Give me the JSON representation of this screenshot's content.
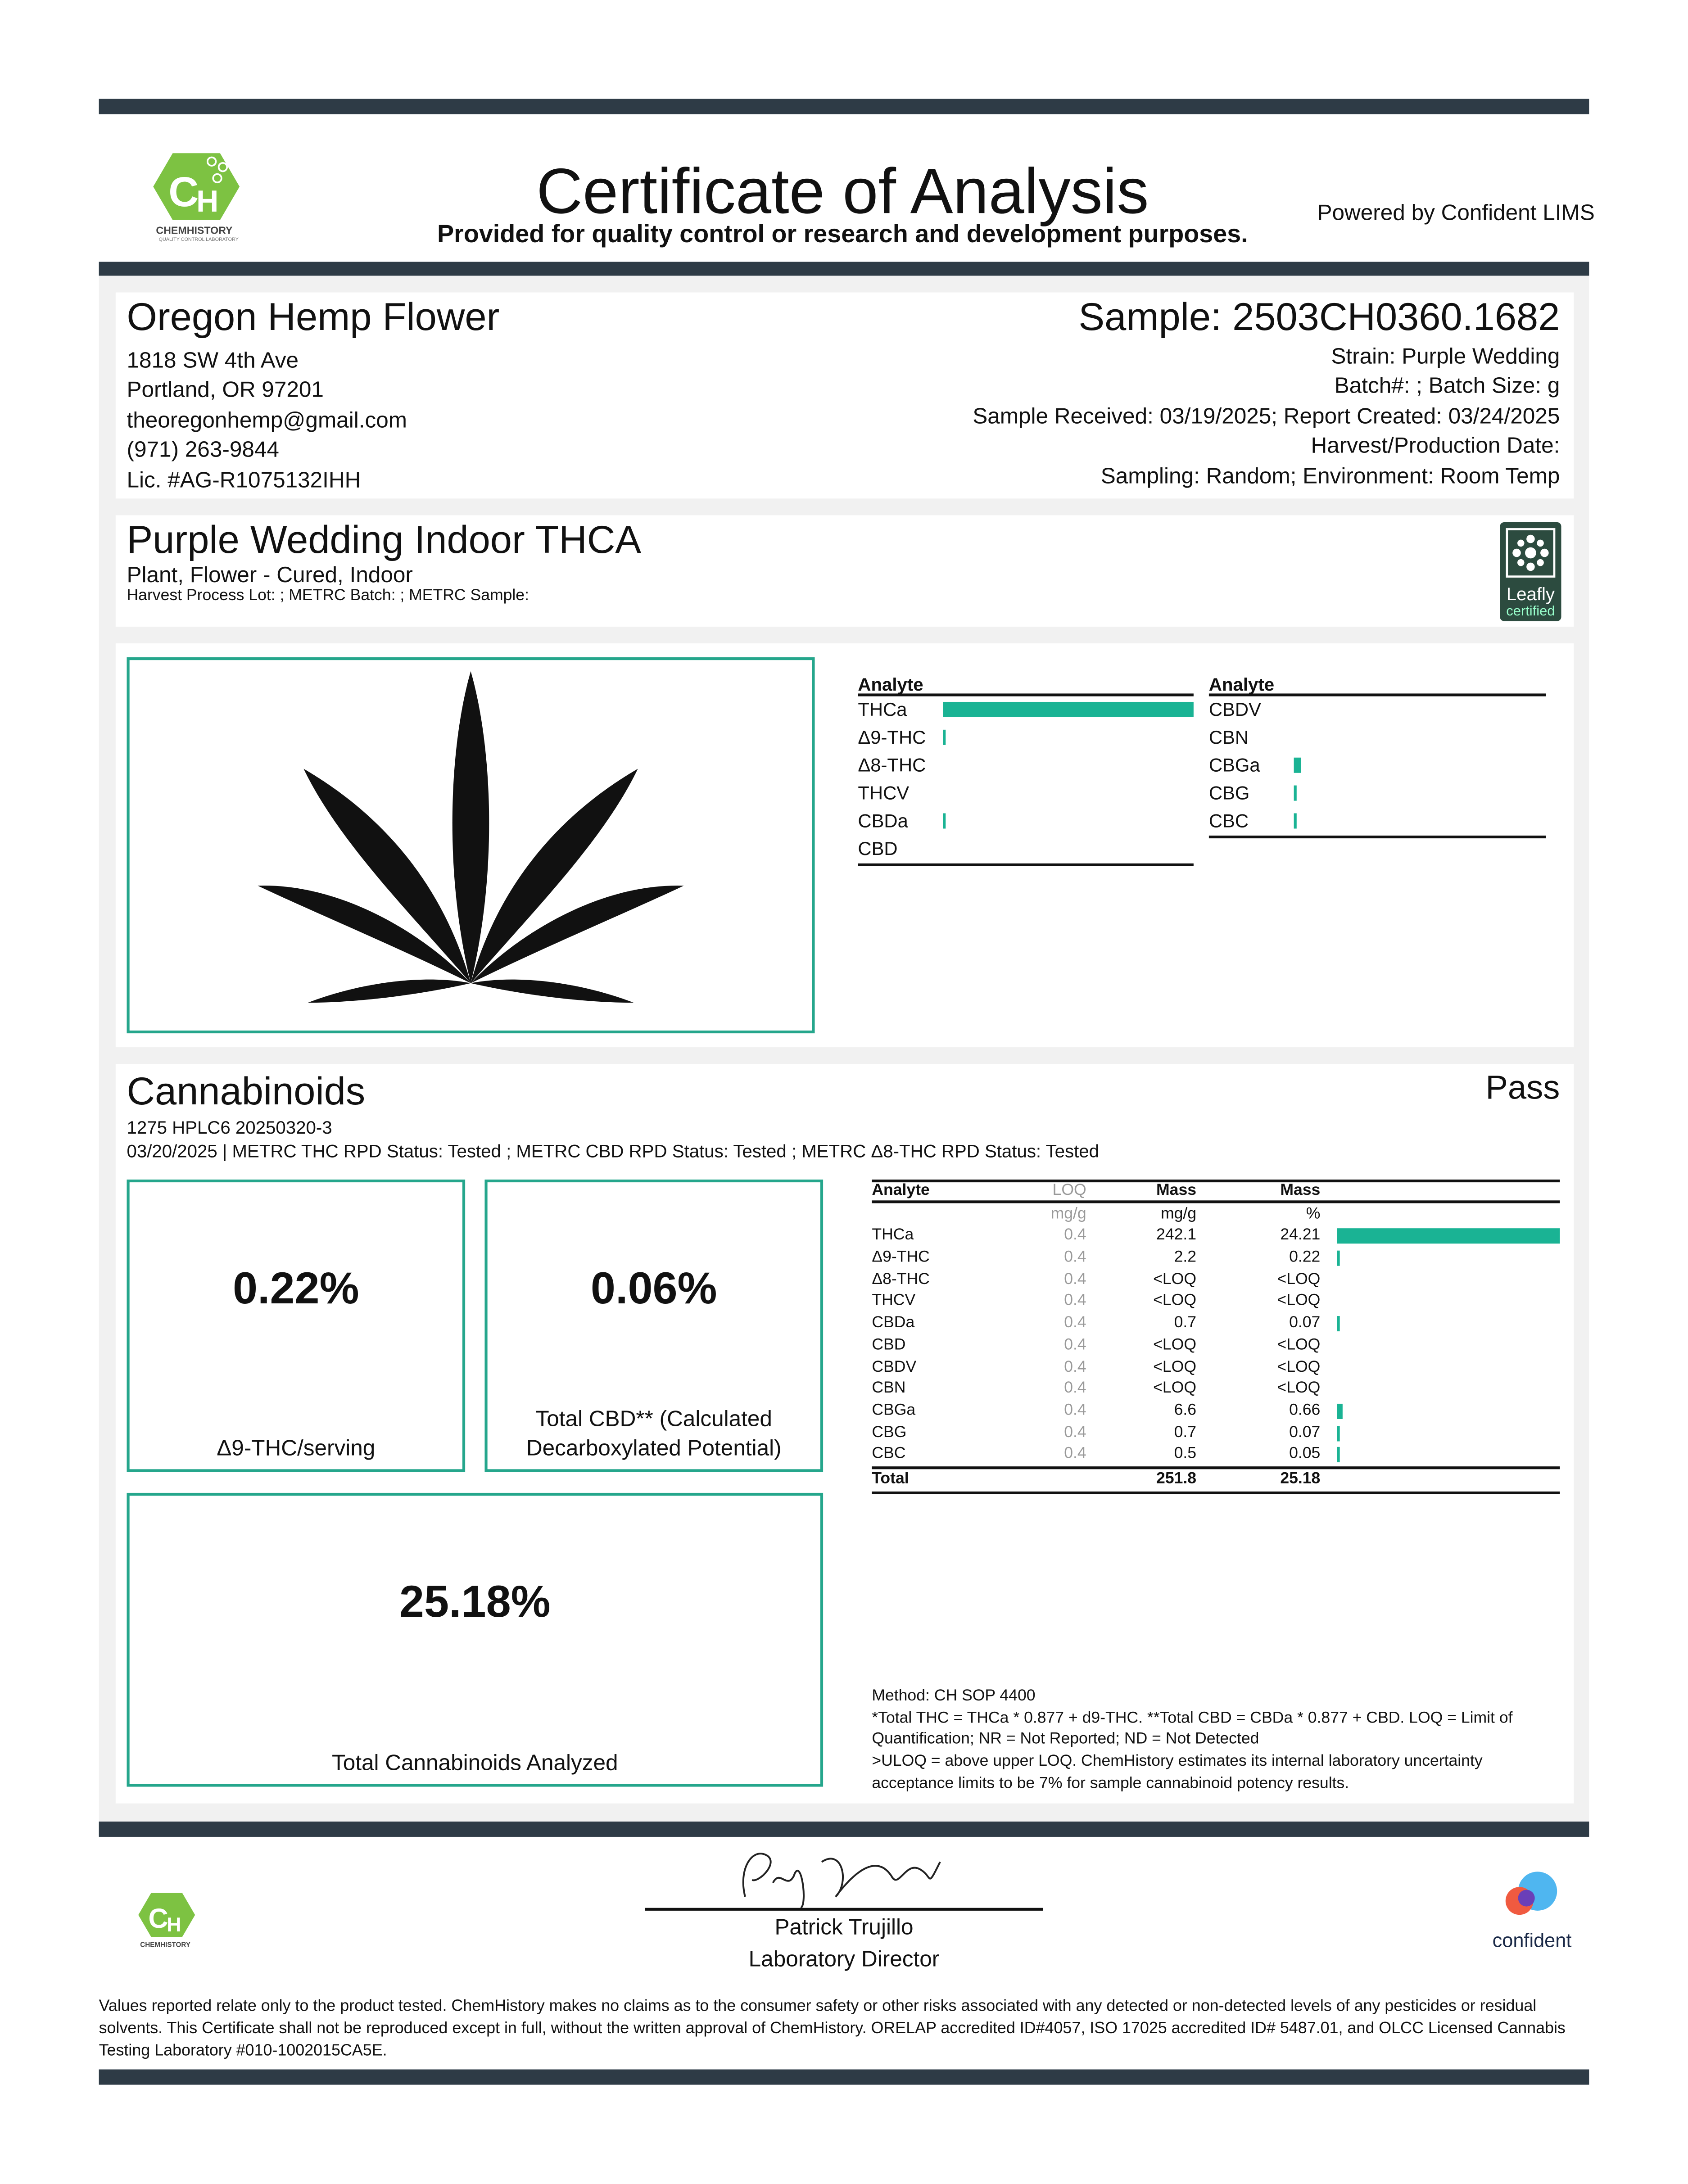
{
  "header": {
    "title": "Certificate of Analysis",
    "subtitle": "Provided for quality control or research and development purposes.",
    "powered_by": "Powered by Confident LIMS",
    "logo_text": "CHEMHISTORY",
    "logo_tagline": "QUALITY CONTROL LABORATORY"
  },
  "client": {
    "name": "Oregon Hemp Flower",
    "address1": "1818 SW 4th Ave",
    "address2": "Portland, OR 97201",
    "email": "theoregonhemp@gmail.com",
    "phone": "(971) 263-9844",
    "license": "Lic. #AG-R1075132IHH"
  },
  "sample": {
    "id": "Sample: 2503CH0360.1682",
    "strain": "Strain: Purple Wedding",
    "batch": "Batch#: ; Batch Size:  g",
    "dates": "Sample Received: 03/19/2025; Report Created: 03/24/2025",
    "harvest": "Harvest/Production Date: ",
    "sampling": "Sampling: Random; Environment: Room Temp"
  },
  "product": {
    "name": "Purple Wedding Indoor THCA",
    "type": "Plant, Flower - Cured, Indoor",
    "lots": "Harvest Process Lot: ; METRC Batch: ; METRC Sample:",
    "badge": "Leafly",
    "badge_sub": "certified"
  },
  "summary": {
    "col_header": "Analyte",
    "left": [
      {
        "name": "THCa",
        "pct": 24.21
      },
      {
        "name": "Δ9-THC",
        "pct": 0.22
      },
      {
        "name": "Δ8-THC",
        "pct": 0
      },
      {
        "name": "THCV",
        "pct": 0
      },
      {
        "name": "CBDa",
        "pct": 0.07
      },
      {
        "name": "CBD",
        "pct": 0
      }
    ],
    "right": [
      {
        "name": "CBDV",
        "pct": 0
      },
      {
        "name": "CBN",
        "pct": 0
      },
      {
        "name": "CBGa",
        "pct": 0.66
      },
      {
        "name": "CBG",
        "pct": 0.07
      },
      {
        "name": "CBC",
        "pct": 0.05
      }
    ]
  },
  "cannabinoids": {
    "title": "Cannabinoids",
    "status": "Pass",
    "instrument": "1275 HPLC6 20250320-3",
    "meta": "03/20/2025 | METRC THC RPD Status: Tested ; METRC CBD RPD Status: Tested ; METRC Δ8-THC RPD Status: Tested",
    "thc_value": "0.22%",
    "thc_label": "Δ9-THC/serving",
    "cbd_value": "0.06%",
    "cbd_label": "Total CBD** (Calculated Decarboxylated Potential)",
    "total_value": "25.18%",
    "total_label": "Total Cannabinoids Analyzed",
    "table": {
      "headers": [
        "Analyte",
        "LOQ",
        "Mass",
        "Mass"
      ],
      "units": [
        "",
        "mg/g",
        "mg/g",
        "%"
      ],
      "rows": [
        [
          "THCa",
          "0.4",
          "242.1",
          "24.21"
        ],
        [
          "Δ9-THC",
          "0.4",
          "2.2",
          "0.22"
        ],
        [
          "Δ8-THC",
          "0.4",
          "<LOQ",
          "<LOQ"
        ],
        [
          "THCV",
          "0.4",
          "<LOQ",
          "<LOQ"
        ],
        [
          "CBDa",
          "0.4",
          "0.7",
          "0.07"
        ],
        [
          "CBD",
          "0.4",
          "<LOQ",
          "<LOQ"
        ],
        [
          "CBDV",
          "0.4",
          "<LOQ",
          "<LOQ"
        ],
        [
          "CBN",
          "0.4",
          "<LOQ",
          "<LOQ"
        ],
        [
          "CBGa",
          "0.4",
          "6.6",
          "0.66"
        ],
        [
          "CBG",
          "0.4",
          "0.7",
          "0.07"
        ],
        [
          "CBC",
          "0.4",
          "0.5",
          "0.05"
        ]
      ],
      "total": [
        "Total",
        "",
        "251.8",
        "25.18"
      ]
    },
    "method": "Method: CH SOP 4400",
    "notes": "*Total THC = THCa * 0.877 + d9-THC. **Total CBD = CBDa * 0.877 + CBD. LOQ = Limit of Quantification; NR = Not Reported; ND = Not Detected",
    "notes2": ">ULOQ = above upper LOQ. ChemHistory estimates its internal laboratory uncertainty acceptance limits to be 7% for sample cannabinoid potency results."
  },
  "signoff": {
    "name": "Patrick Trujillo",
    "role": "Laboratory Director",
    "partner_logo": "confident"
  },
  "disclaimer": "Values reported relate only to the product tested. ChemHistory makes no claims as to the consumer safety or other risks associated with any detected or non-detected levels of any pesticides or residual solvents. This Certificate shall not be reproduced except in full, without the written approval of ChemHistory.  ORELAP accredited ID#4057, ISO 17025 accredited ID# 5487.01, and OLCC Licensed Cannabis Testing Laboratory #010-1002015CA5E.",
  "colors": {
    "accent": "#1ab394",
    "bar": "#2e3b46",
    "logo_green": "#7dc242"
  }
}
